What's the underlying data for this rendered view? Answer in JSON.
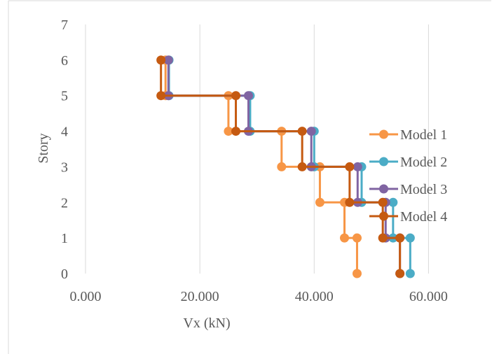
{
  "chart_data": {
    "type": "line",
    "xlabel": "Vx (kN)",
    "ylabel": "Story",
    "xlim": [
      0,
      70
    ],
    "ylim": [
      0,
      7
    ],
    "x_ticks": [
      "0.000",
      "20.000",
      "40.000",
      "60.000"
    ],
    "x_tick_values": [
      0,
      20,
      40,
      60
    ],
    "y_ticks": [
      "0",
      "1",
      "2",
      "3",
      "4",
      "5",
      "6",
      "7"
    ],
    "y_tick_values": [
      0,
      1,
      2,
      3,
      4,
      5,
      6,
      7
    ],
    "grid": "vertical",
    "legend_position": "right",
    "series": [
      {
        "name": "Model 1",
        "color": "#f79646",
        "points": [
          [
            47.5,
            0
          ],
          [
            47.5,
            1
          ],
          [
            45.3,
            1
          ],
          [
            45.3,
            2
          ],
          [
            41.0,
            2
          ],
          [
            41.0,
            3
          ],
          [
            34.3,
            3
          ],
          [
            34.3,
            4
          ],
          [
            25.0,
            4
          ],
          [
            25.0,
            5
          ],
          [
            14.0,
            5
          ],
          [
            14.0,
            6
          ]
        ]
      },
      {
        "name": "Model 2",
        "color": "#4bacc6",
        "points": [
          [
            56.8,
            0
          ],
          [
            56.8,
            1
          ],
          [
            53.8,
            1
          ],
          [
            53.8,
            2
          ],
          [
            48.3,
            2
          ],
          [
            48.3,
            3
          ],
          [
            40.0,
            3
          ],
          [
            40.0,
            4
          ],
          [
            28.8,
            4
          ],
          [
            28.8,
            5
          ],
          [
            14.6,
            5
          ],
          [
            14.6,
            6
          ]
        ]
      },
      {
        "name": "Model 3",
        "color": "#8064a2",
        "points": [
          [
            55.0,
            0
          ],
          [
            55.0,
            1
          ],
          [
            52.5,
            1
          ],
          [
            52.5,
            2
          ],
          [
            47.6,
            2
          ],
          [
            47.6,
            3
          ],
          [
            39.5,
            3
          ],
          [
            39.5,
            4
          ],
          [
            28.5,
            4
          ],
          [
            28.5,
            5
          ],
          [
            14.5,
            5
          ],
          [
            14.5,
            6
          ]
        ]
      },
      {
        "name": "Model 4",
        "color": "#c55a11",
        "points": [
          [
            55.0,
            0
          ],
          [
            55.0,
            1
          ],
          [
            52.0,
            1
          ],
          [
            52.0,
            2
          ],
          [
            46.2,
            2
          ],
          [
            46.2,
            3
          ],
          [
            37.9,
            3
          ],
          [
            37.9,
            4
          ],
          [
            26.3,
            4
          ],
          [
            26.3,
            5
          ],
          [
            13.2,
            5
          ],
          [
            13.2,
            6
          ]
        ]
      }
    ]
  }
}
